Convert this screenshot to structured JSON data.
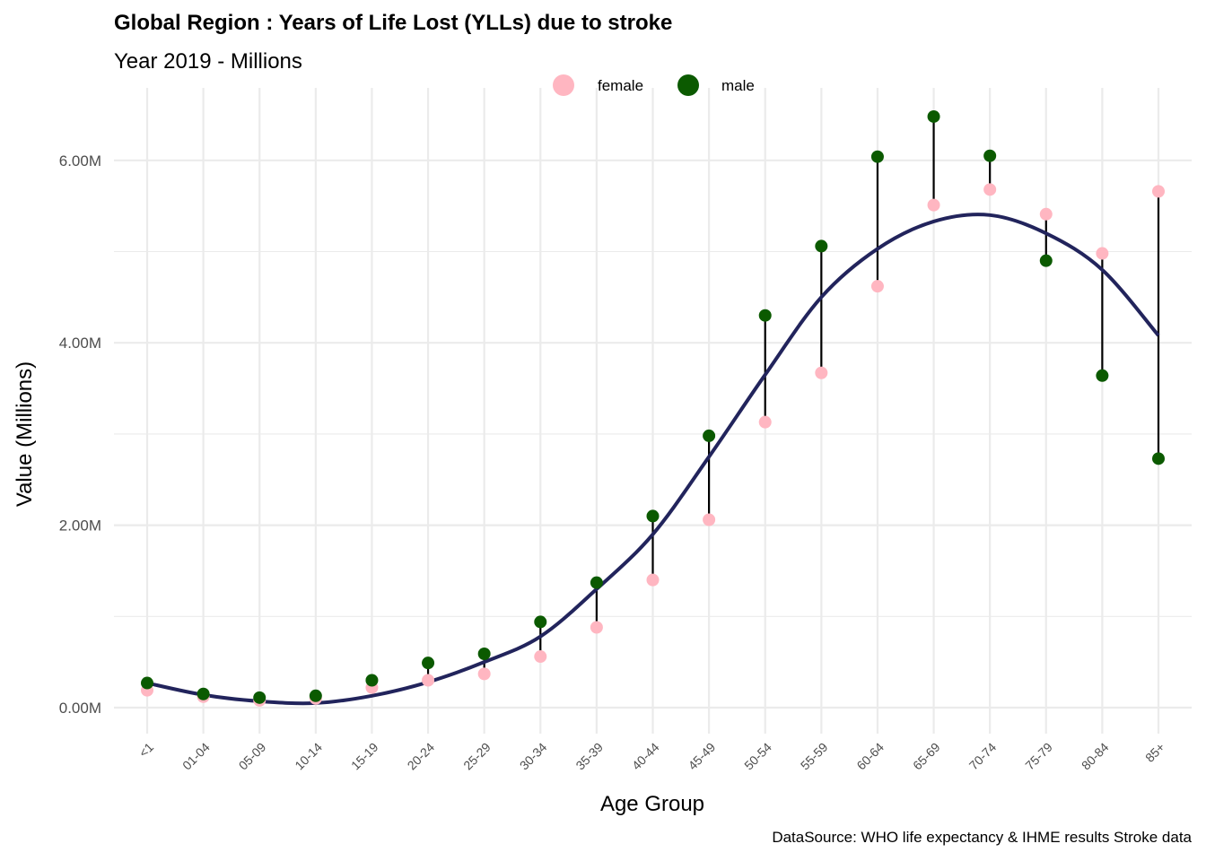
{
  "chart_data": {
    "type": "scatter",
    "title": "Global Region : Years of Life Lost (YLLs) due to stroke",
    "subtitle": "Year 2019 - Millions",
    "caption": "DataSource: WHO life expectancy & IHME results Stroke data",
    "xlabel": "Age Group",
    "ylabel": "Value (Millions)",
    "ylim": [
      -0.3,
      6.7
    ],
    "yticks": [
      0,
      2,
      4,
      6
    ],
    "ytick_labels": [
      "0.00M",
      "2.00M",
      "4.00M",
      "6.00M"
    ],
    "grid": true,
    "legend_position": "top",
    "categories": [
      "<1",
      "01-04",
      "05-09",
      "10-14",
      "15-19",
      "20-24",
      "25-29",
      "30-34",
      "35-39",
      "40-44",
      "45-49",
      "50-54",
      "55-59",
      "60-64",
      "65-69",
      "70-74",
      "75-79",
      "80-84",
      "85+"
    ],
    "series": [
      {
        "name": "female",
        "color": "#FFB6C1",
        "values": [
          0.19,
          0.12,
          0.08,
          0.1,
          0.22,
          0.3,
          0.37,
          0.56,
          0.88,
          1.4,
          2.06,
          3.13,
          3.67,
          4.62,
          5.51,
          5.68,
          5.41,
          4.98,
          5.66
        ]
      },
      {
        "name": "male",
        "color": "#0B5A00",
        "values": [
          0.27,
          0.15,
          0.11,
          0.13,
          0.3,
          0.49,
          0.59,
          0.94,
          1.37,
          2.1,
          2.98,
          4.3,
          5.06,
          6.04,
          6.48,
          6.05,
          4.9,
          3.64,
          2.73
        ]
      }
    ],
    "trend": {
      "color": "#22245C",
      "values": [
        0.27,
        0.14,
        0.07,
        0.05,
        0.13,
        0.28,
        0.5,
        0.78,
        1.3,
        1.9,
        2.75,
        3.65,
        4.5,
        5.03,
        5.33,
        5.4,
        5.2,
        4.8,
        4.08
      ]
    }
  }
}
